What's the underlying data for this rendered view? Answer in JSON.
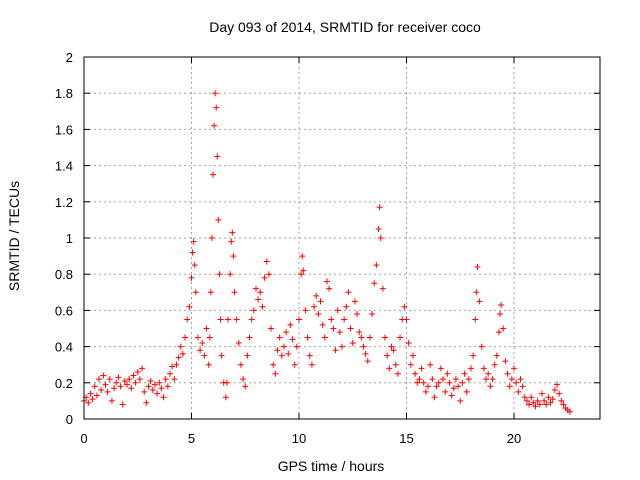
{
  "chart_data": {
    "type": "scatter",
    "title": "Day 093 of 2014, SRMTID for receiver coco",
    "xlabel": "GPS time / hours",
    "ylabel": "SRMTID / TECUs",
    "xlim": [
      0,
      24
    ],
    "ylim": [
      0,
      2
    ],
    "xticks": [
      0,
      5,
      10,
      15,
      20
    ],
    "xtick_labels": [
      "0",
      "5",
      "10",
      "15",
      "20"
    ],
    "yticks": [
      0,
      0.2,
      0.4,
      0.6,
      0.8,
      1.0,
      1.2,
      1.4,
      1.6,
      1.8,
      2.0
    ],
    "ytick_labels": [
      "0",
      "0.2",
      "0.4",
      "0.6",
      "0.8",
      "1",
      "1.2",
      "1.4",
      "1.6",
      "1.8",
      "2"
    ],
    "grid": true,
    "marker": "+",
    "color": "#ff0000",
    "series": [
      {
        "name": "SRMTID",
        "points": [
          [
            0.0,
            0.1
          ],
          [
            0.1,
            0.12
          ],
          [
            0.2,
            0.09
          ],
          [
            0.3,
            0.14
          ],
          [
            0.4,
            0.11
          ],
          [
            0.5,
            0.18
          ],
          [
            0.6,
            0.13
          ],
          [
            0.7,
            0.22
          ],
          [
            0.8,
            0.16
          ],
          [
            0.9,
            0.24
          ],
          [
            1.0,
            0.19
          ],
          [
            1.1,
            0.15
          ],
          [
            1.2,
            0.22
          ],
          [
            1.3,
            0.1
          ],
          [
            1.4,
            0.17
          ],
          [
            1.5,
            0.2
          ],
          [
            1.6,
            0.23
          ],
          [
            1.7,
            0.18
          ],
          [
            1.8,
            0.08
          ],
          [
            1.9,
            0.21
          ],
          [
            2.0,
            0.19
          ],
          [
            2.1,
            0.22
          ],
          [
            2.2,
            0.17
          ],
          [
            2.3,
            0.24
          ],
          [
            2.4,
            0.2
          ],
          [
            2.5,
            0.26
          ],
          [
            2.6,
            0.22
          ],
          [
            2.7,
            0.28
          ],
          [
            2.8,
            0.15
          ],
          [
            2.9,
            0.09
          ],
          [
            3.0,
            0.18
          ],
          [
            3.1,
            0.21
          ],
          [
            3.2,
            0.16
          ],
          [
            3.3,
            0.19
          ],
          [
            3.4,
            0.14
          ],
          [
            3.5,
            0.2
          ],
          [
            3.6,
            0.17
          ],
          [
            3.7,
            0.12
          ],
          [
            3.8,
            0.22
          ],
          [
            3.9,
            0.18
          ],
          [
            4.0,
            0.25
          ],
          [
            4.1,
            0.29
          ],
          [
            4.2,
            0.22
          ],
          [
            4.3,
            0.3
          ],
          [
            4.4,
            0.34
          ],
          [
            4.5,
            0.4
          ],
          [
            4.6,
            0.36
          ],
          [
            4.7,
            0.45
          ],
          [
            4.8,
            0.55
          ],
          [
            4.9,
            0.62
          ],
          [
            5.0,
            0.78
          ],
          [
            5.05,
            0.92
          ],
          [
            5.1,
            0.98
          ],
          [
            5.15,
            0.85
          ],
          [
            5.2,
            0.7
          ],
          [
            5.3,
            0.45
          ],
          [
            5.4,
            0.38
          ],
          [
            5.5,
            0.42
          ],
          [
            5.6,
            0.35
          ],
          [
            5.7,
            0.5
          ],
          [
            5.8,
            0.3
          ],
          [
            5.85,
            0.45
          ],
          [
            5.9,
            0.7
          ],
          [
            5.95,
            1.0
          ],
          [
            6.0,
            1.35
          ],
          [
            6.05,
            1.62
          ],
          [
            6.1,
            1.8
          ],
          [
            6.15,
            1.72
          ],
          [
            6.2,
            1.45
          ],
          [
            6.25,
            1.1
          ],
          [
            6.3,
            0.8
          ],
          [
            6.35,
            0.55
          ],
          [
            6.4,
            0.35
          ],
          [
            6.5,
            0.2
          ],
          [
            6.6,
            0.12
          ],
          [
            6.65,
            0.2
          ],
          [
            6.7,
            0.55
          ],
          [
            6.8,
            0.8
          ],
          [
            6.85,
            0.98
          ],
          [
            6.9,
            1.03
          ],
          [
            6.95,
            0.9
          ],
          [
            7.0,
            0.7
          ],
          [
            7.1,
            0.55
          ],
          [
            7.2,
            0.42
          ],
          [
            7.3,
            0.3
          ],
          [
            7.4,
            0.22
          ],
          [
            7.5,
            0.18
          ],
          [
            7.6,
            0.35
          ],
          [
            7.7,
            0.45
          ],
          [
            7.8,
            0.55
          ],
          [
            7.9,
            0.6
          ],
          [
            8.0,
            0.72
          ],
          [
            8.1,
            0.66
          ],
          [
            8.2,
            0.7
          ],
          [
            8.3,
            0.62
          ],
          [
            8.4,
            0.78
          ],
          [
            8.5,
            0.87
          ],
          [
            8.6,
            0.8
          ],
          [
            8.7,
            0.5
          ],
          [
            8.8,
            0.3
          ],
          [
            8.9,
            0.25
          ],
          [
            9.0,
            0.38
          ],
          [
            9.1,
            0.45
          ],
          [
            9.2,
            0.35
          ],
          [
            9.3,
            0.4
          ],
          [
            9.4,
            0.48
          ],
          [
            9.5,
            0.36
          ],
          [
            9.6,
            0.52
          ],
          [
            9.7,
            0.44
          ],
          [
            9.8,
            0.3
          ],
          [
            9.9,
            0.4
          ],
          [
            10.0,
            0.55
          ],
          [
            10.1,
            0.8
          ],
          [
            10.15,
            0.9
          ],
          [
            10.2,
            0.82
          ],
          [
            10.3,
            0.6
          ],
          [
            10.4,
            0.45
          ],
          [
            10.5,
            0.35
          ],
          [
            10.6,
            0.3
          ],
          [
            10.7,
            0.62
          ],
          [
            10.8,
            0.68
          ],
          [
            10.9,
            0.58
          ],
          [
            11.0,
            0.65
          ],
          [
            11.1,
            0.52
          ],
          [
            11.2,
            0.45
          ],
          [
            11.3,
            0.76
          ],
          [
            11.4,
            0.72
          ],
          [
            11.5,
            0.55
          ],
          [
            11.6,
            0.5
          ],
          [
            11.7,
            0.38
          ],
          [
            11.8,
            0.6
          ],
          [
            11.9,
            0.48
          ],
          [
            12.0,
            0.4
          ],
          [
            12.1,
            0.55
          ],
          [
            12.2,
            0.62
          ],
          [
            12.3,
            0.7
          ],
          [
            12.4,
            0.5
          ],
          [
            12.5,
            0.42
          ],
          [
            12.6,
            0.65
          ],
          [
            12.7,
            0.58
          ],
          [
            12.8,
            0.48
          ],
          [
            12.9,
            0.45
          ],
          [
            13.0,
            0.4
          ],
          [
            13.1,
            0.36
          ],
          [
            13.2,
            0.32
          ],
          [
            13.3,
            0.45
          ],
          [
            13.4,
            0.58
          ],
          [
            13.5,
            0.75
          ],
          [
            13.6,
            0.85
          ],
          [
            13.7,
            1.05
          ],
          [
            13.75,
            1.17
          ],
          [
            13.8,
            1.0
          ],
          [
            13.9,
            0.72
          ],
          [
            14.0,
            0.45
          ],
          [
            14.1,
            0.35
          ],
          [
            14.2,
            0.28
          ],
          [
            14.3,
            0.4
          ],
          [
            14.4,
            0.38
          ],
          [
            14.5,
            0.3
          ],
          [
            14.6,
            0.25
          ],
          [
            14.7,
            0.45
          ],
          [
            14.8,
            0.55
          ],
          [
            14.9,
            0.62
          ],
          [
            15.0,
            0.55
          ],
          [
            15.1,
            0.42
          ],
          [
            15.2,
            0.3
          ],
          [
            15.3,
            0.35
          ],
          [
            15.4,
            0.25
          ],
          [
            15.5,
            0.2
          ],
          [
            15.6,
            0.22
          ],
          [
            15.7,
            0.28
          ],
          [
            15.8,
            0.2
          ],
          [
            15.9,
            0.15
          ],
          [
            16.0,
            0.18
          ],
          [
            16.1,
            0.3
          ],
          [
            16.2,
            0.22
          ],
          [
            16.3,
            0.12
          ],
          [
            16.4,
            0.18
          ],
          [
            16.5,
            0.2
          ],
          [
            16.6,
            0.28
          ],
          [
            16.7,
            0.22
          ],
          [
            16.8,
            0.15
          ],
          [
            16.9,
            0.25
          ],
          [
            17.0,
            0.2
          ],
          [
            17.1,
            0.13
          ],
          [
            17.2,
            0.17
          ],
          [
            17.3,
            0.22
          ],
          [
            17.4,
            0.18
          ],
          [
            17.5,
            0.1
          ],
          [
            17.6,
            0.2
          ],
          [
            17.7,
            0.25
          ],
          [
            17.8,
            0.15
          ],
          [
            17.9,
            0.22
          ],
          [
            18.0,
            0.28
          ],
          [
            18.1,
            0.35
          ],
          [
            18.2,
            0.55
          ],
          [
            18.25,
            0.7
          ],
          [
            18.3,
            0.84
          ],
          [
            18.4,
            0.65
          ],
          [
            18.5,
            0.4
          ],
          [
            18.6,
            0.28
          ],
          [
            18.7,
            0.22
          ],
          [
            18.8,
            0.25
          ],
          [
            18.9,
            0.18
          ],
          [
            19.0,
            0.22
          ],
          [
            19.1,
            0.3
          ],
          [
            19.2,
            0.35
          ],
          [
            19.3,
            0.48
          ],
          [
            19.35,
            0.58
          ],
          [
            19.4,
            0.63
          ],
          [
            19.5,
            0.5
          ],
          [
            19.6,
            0.32
          ],
          [
            19.7,
            0.25
          ],
          [
            19.8,
            0.18
          ],
          [
            19.9,
            0.22
          ],
          [
            20.0,
            0.28
          ],
          [
            20.1,
            0.2
          ],
          [
            20.2,
            0.15
          ],
          [
            20.3,
            0.22
          ],
          [
            20.4,
            0.18
          ],
          [
            20.5,
            0.12
          ],
          [
            20.6,
            0.1
          ],
          [
            20.7,
            0.08
          ],
          [
            20.8,
            0.12
          ],
          [
            20.9,
            0.09
          ],
          [
            21.0,
            0.07
          ],
          [
            21.1,
            0.1
          ],
          [
            21.2,
            0.08
          ],
          [
            21.3,
            0.14
          ],
          [
            21.4,
            0.1
          ],
          [
            21.5,
            0.08
          ],
          [
            21.6,
            0.12
          ],
          [
            21.7,
            0.09
          ],
          [
            21.8,
            0.11
          ],
          [
            21.9,
            0.16
          ],
          [
            22.0,
            0.19
          ],
          [
            22.1,
            0.14
          ],
          [
            22.2,
            0.1
          ],
          [
            22.3,
            0.08
          ],
          [
            22.4,
            0.06
          ],
          [
            22.5,
            0.05
          ],
          [
            22.6,
            0.04
          ]
        ]
      }
    ]
  }
}
